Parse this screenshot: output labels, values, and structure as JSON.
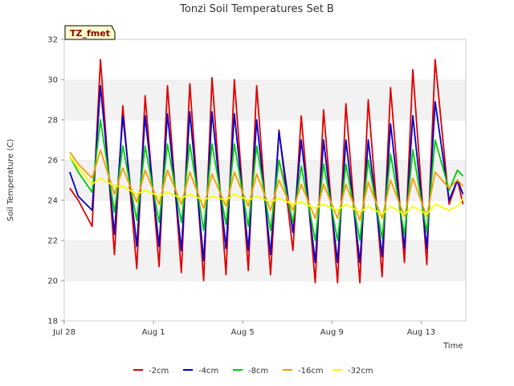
{
  "chart_data": {
    "type": "line",
    "title": "Tonzi Soil Temperatures Set B",
    "xlabel": "Time",
    "ylabel": "Soil Temperature (C)",
    "badge": "TZ_fmet",
    "xlim": [
      "2019-07-28",
      "2019-08-15"
    ],
    "ylim": [
      18,
      32
    ],
    "x_ticks": [
      "Jul 28",
      "Aug 1",
      "Aug 5",
      "Aug 9",
      "Aug 13"
    ],
    "x_tick_dates": [
      "2019-07-28",
      "2019-08-01",
      "2019-08-05",
      "2019-08-09",
      "2019-08-13"
    ],
    "y_ticks": [
      18,
      20,
      22,
      24,
      26,
      28,
      30,
      32
    ],
    "grid": "horizontal bands",
    "legend_position": "bottom",
    "x": [
      "2019-07-28 06:00",
      "2019-07-28 15:00",
      "2019-07-29 06:00",
      "2019-07-29 15:00",
      "2019-07-30 06:00",
      "2019-07-30 15:00",
      "2019-07-31 06:00",
      "2019-07-31 15:00",
      "2019-08-01 06:00",
      "2019-08-01 15:00",
      "2019-08-02 06:00",
      "2019-08-02 15:00",
      "2019-08-03 06:00",
      "2019-08-03 15:00",
      "2019-08-04 06:00",
      "2019-08-04 15:00",
      "2019-08-05 06:00",
      "2019-08-05 15:00",
      "2019-08-06 06:00",
      "2019-08-06 15:00",
      "2019-08-07 06:00",
      "2019-08-07 15:00",
      "2019-08-08 06:00",
      "2019-08-08 15:00",
      "2019-08-09 06:00",
      "2019-08-09 15:00",
      "2019-08-10 06:00",
      "2019-08-10 15:00",
      "2019-08-11 06:00",
      "2019-08-11 15:00",
      "2019-08-12 06:00",
      "2019-08-12 15:00",
      "2019-08-13 06:00",
      "2019-08-13 15:00",
      "2019-08-14 06:00",
      "2019-08-14 15:00",
      "2019-08-14 21:00"
    ],
    "series": [
      {
        "name": "-2cm",
        "color": "#e00000",
        "values": [
          24.6,
          24.0,
          22.7,
          31.0,
          21.3,
          28.7,
          20.6,
          29.2,
          20.7,
          29.7,
          20.4,
          29.8,
          20.0,
          30.1,
          20.3,
          30.0,
          20.5,
          29.7,
          20.3,
          27.5,
          21.5,
          28.2,
          19.9,
          28.5,
          19.9,
          28.8,
          19.9,
          29.0,
          20.2,
          29.6,
          20.9,
          30.5,
          20.8,
          31.0,
          23.8,
          25.0,
          23.8
        ]
      },
      {
        "name": "-4cm",
        "color": "#0000cc",
        "values": [
          25.4,
          24.2,
          23.5,
          29.7,
          22.3,
          28.2,
          21.7,
          28.2,
          21.7,
          28.3,
          21.5,
          28.4,
          21.0,
          28.4,
          21.6,
          28.3,
          21.5,
          28.0,
          21.3,
          27.4,
          22.4,
          27.0,
          20.9,
          27.0,
          20.9,
          27.0,
          20.9,
          27.0,
          21.2,
          27.8,
          21.6,
          28.2,
          21.6,
          28.9,
          24.0,
          25.0,
          24.3
        ]
      },
      {
        "name": "-8cm",
        "color": "#00cc00",
        "values": [
          26.2,
          25.4,
          24.4,
          28.0,
          23.4,
          26.7,
          23.0,
          26.7,
          22.9,
          26.8,
          22.9,
          26.8,
          22.5,
          26.8,
          22.8,
          26.8,
          22.7,
          26.7,
          22.5,
          26.0,
          22.9,
          25.7,
          22.0,
          25.8,
          22.0,
          25.8,
          22.0,
          26.0,
          22.1,
          26.3,
          22.3,
          26.5,
          22.4,
          27.0,
          24.5,
          25.5,
          25.2
        ]
      },
      {
        "name": "-16cm",
        "color": "#ff9900",
        "values": [
          26.4,
          25.8,
          25.1,
          26.5,
          24.3,
          25.6,
          23.9,
          25.5,
          23.8,
          25.5,
          23.8,
          25.4,
          23.6,
          25.3,
          23.7,
          25.4,
          23.7,
          25.3,
          23.5,
          25.0,
          23.5,
          24.8,
          23.1,
          24.8,
          23.1,
          24.8,
          23.0,
          24.9,
          23.1,
          25.0,
          23.2,
          25.1,
          23.2,
          25.4,
          24.6,
          25.0,
          24.7
        ]
      },
      {
        "name": "-32cm",
        "color": "#ffff00",
        "values": [
          26.2,
          25.6,
          24.8,
          25.1,
          24.7,
          24.7,
          24.3,
          24.5,
          24.2,
          24.4,
          24.1,
          24.3,
          24.0,
          24.2,
          24.0,
          24.3,
          24.0,
          24.2,
          23.9,
          24.1,
          23.8,
          23.9,
          23.6,
          23.8,
          23.5,
          23.8,
          23.4,
          23.7,
          23.3,
          23.7,
          23.3,
          23.7,
          23.3,
          23.8,
          23.5,
          23.7,
          24.1
        ]
      }
    ]
  }
}
